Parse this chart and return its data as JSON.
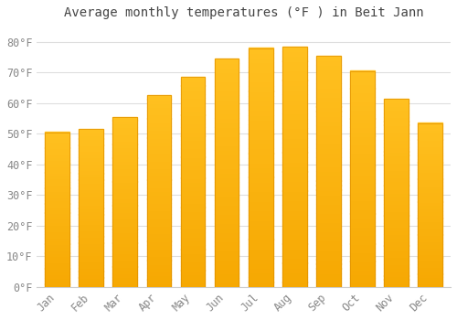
{
  "title": "Average monthly temperatures (°F ) in Beit Jann",
  "months": [
    "Jan",
    "Feb",
    "Mar",
    "Apr",
    "May",
    "Jun",
    "Jul",
    "Aug",
    "Sep",
    "Oct",
    "Nov",
    "Dec"
  ],
  "values": [
    50.5,
    51.5,
    55.5,
    62.5,
    68.5,
    74.5,
    78.0,
    78.5,
    75.5,
    70.5,
    61.5,
    53.5
  ],
  "bar_color_top": "#FFC020",
  "bar_color_bottom": "#F5A800",
  "bar_edge_color": "#E09000",
  "background_color": "#ffffff",
  "plot_bg_color": "#ffffff",
  "grid_color": "#dddddd",
  "text_color": "#888888",
  "title_color": "#444444",
  "ylim": [
    0,
    85
  ],
  "yticks": [
    0,
    10,
    20,
    30,
    40,
    50,
    60,
    70,
    80
  ],
  "ytick_labels": [
    "0°F",
    "10°F",
    "20°F",
    "30°F",
    "40°F",
    "50°F",
    "60°F",
    "70°F",
    "80°F"
  ],
  "title_fontsize": 10,
  "tick_fontsize": 8.5,
  "bar_width": 0.72
}
